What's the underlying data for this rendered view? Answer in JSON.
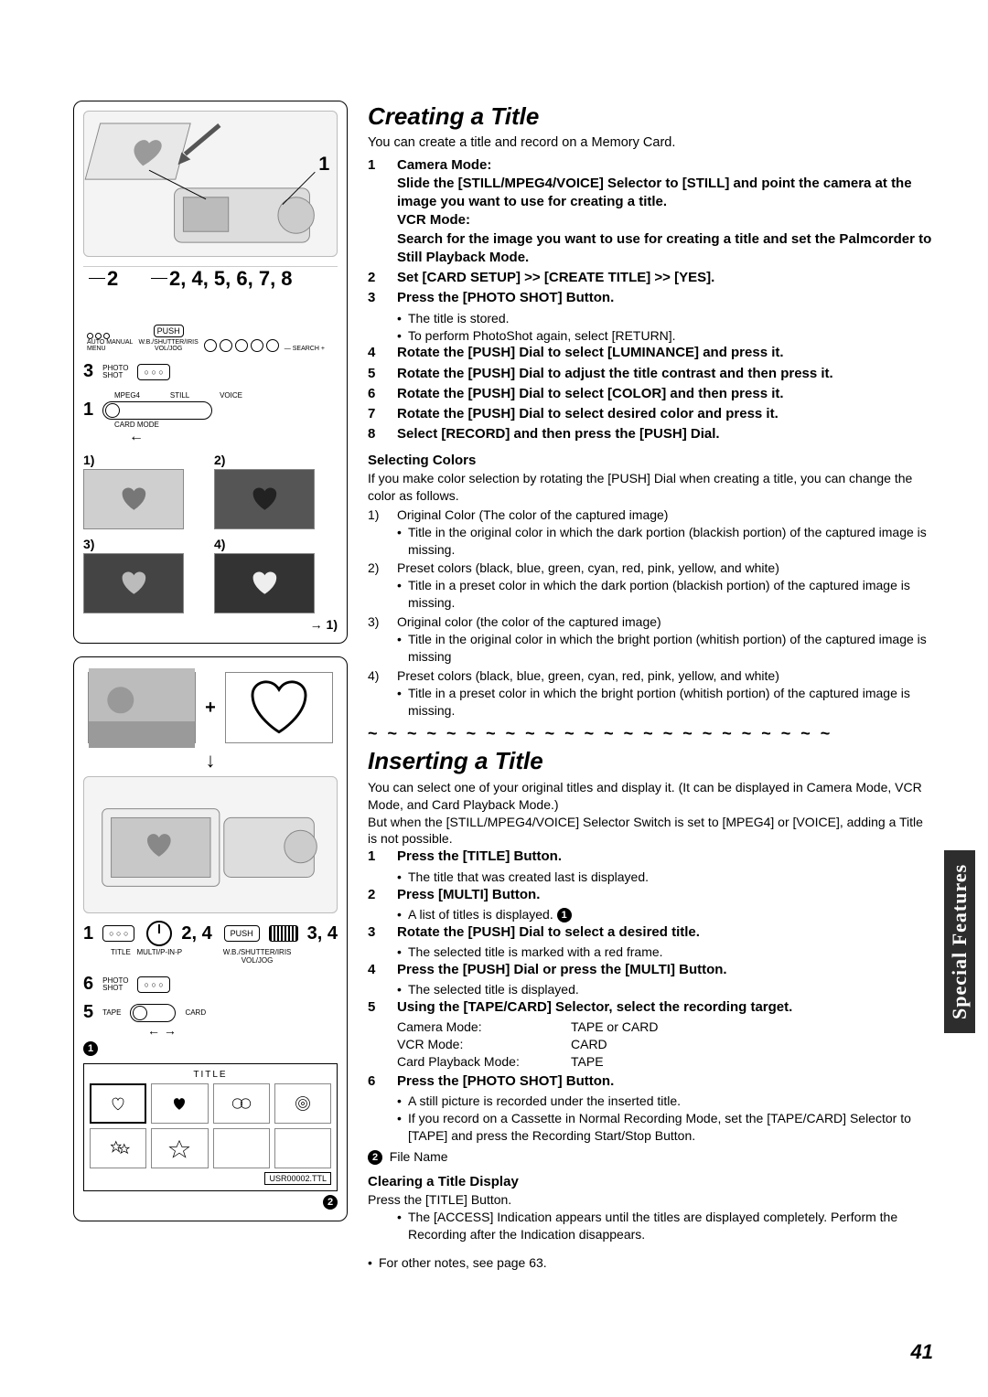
{
  "sidetab": "Special Features",
  "page_number": "41",
  "panel1": {
    "callout_top_right": "1",
    "control_strip": {
      "left_num": "2",
      "right_nums": "2, 4, 5, 6, 7, 8",
      "labels": {
        "auto_manual": "AUTO MANUAL",
        "menu": "MENU",
        "push": "PUSH",
        "wb": "W.B./SHUTTER/IRIS\nVOL/JOG",
        "search": "SEARCH"
      }
    },
    "photo_num": "3",
    "photo_label": "PHOTO\nSHOT",
    "slider_num": "1",
    "slider_labels": {
      "mpeg4": "MPEG4",
      "still": "STILL",
      "voice": "VOICE",
      "cardmode": "CARD MODE"
    },
    "grid_nums": [
      "1)",
      "2)",
      "3)",
      "4)"
    ],
    "loop_to": "1)"
  },
  "panel2": {
    "plus": "+",
    "button_bar": {
      "left_num": "1",
      "title_label": "TITLE",
      "multi_label": "MULTI/P-IN-P",
      "dial_nums": "2, 4",
      "push": "PUSH",
      "wb": "W.B./SHUTTER/IRIS\nVOL/JOG",
      "slide_nums": "3, 4"
    },
    "photo_row_num": "6",
    "photo_label": "PHOTO\nSHOT",
    "tape_row_num": "5",
    "tape_label": "TAPE",
    "card_label": "CARD",
    "circ1": "1",
    "ts_title": "TITLE",
    "ts_filename": "USR00002.TTL",
    "circ2": "2"
  },
  "creating": {
    "heading": "Creating a Title",
    "intro": "You can create a title and record on a Memory Card.",
    "steps": [
      {
        "n": "1",
        "b": "Camera Mode:\nSlide the [STILL/MPEG4/VOICE] Selector to [STILL] and point the camera at the image you want to use for creating a title.\nVCR Mode:\nSearch for the image you want to use for creating a title and set the Palmcorder to Still Playback Mode."
      },
      {
        "n": "2",
        "b": "Set [CARD SETUP] >> [CREATE TITLE] >> [YES]."
      },
      {
        "n": "3",
        "b": "Press the [PHOTO SHOT] Button."
      }
    ],
    "after3": [
      "The title is stored.",
      "To perform PhotoShot again, select [RETURN]."
    ],
    "steps2": [
      {
        "n": "4",
        "b": "Rotate the [PUSH] Dial to select [LUMINANCE] and press it."
      },
      {
        "n": "5",
        "b": "Rotate the [PUSH] Dial to adjust the title contrast and then press it."
      },
      {
        "n": "6",
        "b": "Rotate the [PUSH] Dial to select [COLOR] and then press it."
      },
      {
        "n": "7",
        "b": "Rotate the [PUSH] Dial to select desired color and press it."
      },
      {
        "n": "8",
        "b": "Select [RECORD] and then press the [PUSH] Dial."
      }
    ],
    "selcolors_head": "Selecting Colors",
    "selcolors_intro": "If you make color selection by rotating the [PUSH] Dial when creating a title, you can change the color as follows.",
    "colors": [
      {
        "n": "1)",
        "t": "Original Color (The color of the captured image)",
        "b": "Title in the original color in which the dark portion (blackish portion) of the captured image is missing."
      },
      {
        "n": "2)",
        "t": "Preset colors (black, blue, green, cyan, red, pink, yellow, and white)",
        "b": "Title in a preset color in which the dark portion (blackish portion) of the captured image is missing."
      },
      {
        "n": "3)",
        "t": "Original color (the color of the captured image)",
        "b": "Title in the original color in which the bright portion (whitish portion) of the captured image is missing"
      },
      {
        "n": "4)",
        "t": "Preset colors (black, blue, green, cyan, red, pink, yellow, and white)",
        "b": "Title in a preset color in which the bright portion (whitish portion) of the captured image is missing."
      }
    ],
    "tildes": "~ ~ ~ ~ ~ ~ ~ ~ ~ ~ ~ ~ ~ ~ ~ ~ ~ ~ ~ ~ ~ ~ ~ ~"
  },
  "inserting": {
    "heading": "Inserting a Title",
    "intro1": "You can select one of your original titles and display it. (It can be displayed in Camera Mode, VCR Mode, and Card Playback Mode.)",
    "intro2": "But when the [STILL/MPEG4/VOICE] Selector Switch is set to [MPEG4] or [VOICE], adding a Title is not possible.",
    "steps": [
      {
        "n": "1",
        "b": "Press the [TITLE] Button.",
        "sub": [
          "The title that was created last is displayed."
        ]
      },
      {
        "n": "2",
        "b": "Press [MULTI] Button.",
        "sub": [
          "A list of titles is displayed. @1"
        ]
      },
      {
        "n": "3",
        "b": "Rotate the [PUSH] Dial to select a desired title.",
        "sub": [
          "The selected title is marked with a red frame."
        ]
      },
      {
        "n": "4",
        "b": "Press the [PUSH] Dial or press the [MULTI] Button.",
        "sub": [
          "The selected title is displayed."
        ]
      },
      {
        "n": "5",
        "b": "Using the [TAPE/CARD] Selector, select the recording target."
      }
    ],
    "modes": [
      {
        "k": "Camera Mode:",
        "v": "TAPE or CARD"
      },
      {
        "k": "VCR Mode:",
        "v": "CARD"
      },
      {
        "k": "Card Playback Mode:",
        "v": "TAPE"
      }
    ],
    "step6": {
      "n": "6",
      "b": "Press the [PHOTO SHOT] Button.",
      "sub": [
        "A still picture is recorded under the inserted title.",
        "If you record on a Cassette in Normal Recording Mode, set the [TAPE/CARD] Selector to [TAPE] and press the Recording Start/Stop Button."
      ]
    },
    "filename_label": "File Name",
    "clearing_head": "Clearing a Title Display",
    "clearing_1": "Press the [TITLE] Button.",
    "clearing_b": "The [ACCESS] Indication appears until the titles are displayed completely. Perform the Recording after the Indication disappears.",
    "othernotes": "For other notes, see page 63."
  }
}
